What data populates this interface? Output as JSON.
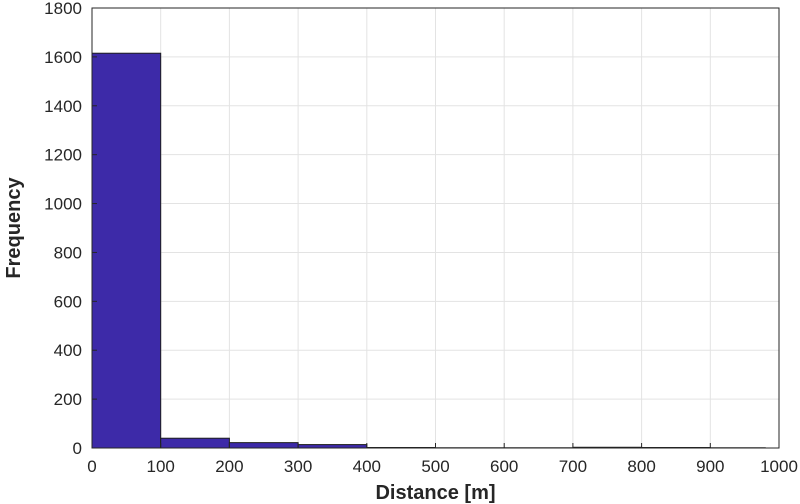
{
  "chart_data": {
    "type": "bar",
    "bin_edges": [
      0,
      100,
      200,
      300,
      400,
      500,
      600,
      700,
      800,
      900,
      980
    ],
    "values": [
      1615,
      40,
      22,
      14,
      2,
      1,
      1,
      3,
      2,
      1
    ],
    "xlabel": "Distance [m]",
    "ylabel": "Frequency",
    "xlim": [
      0,
      1000
    ],
    "ylim": [
      0,
      1800
    ],
    "xticks": [
      0,
      100,
      200,
      300,
      400,
      500,
      600,
      700,
      800,
      900,
      1000
    ],
    "yticks": [
      0,
      200,
      400,
      600,
      800,
      1000,
      1200,
      1400,
      1600,
      1800
    ],
    "grid": true,
    "bar_color": "#3d2aa8"
  }
}
